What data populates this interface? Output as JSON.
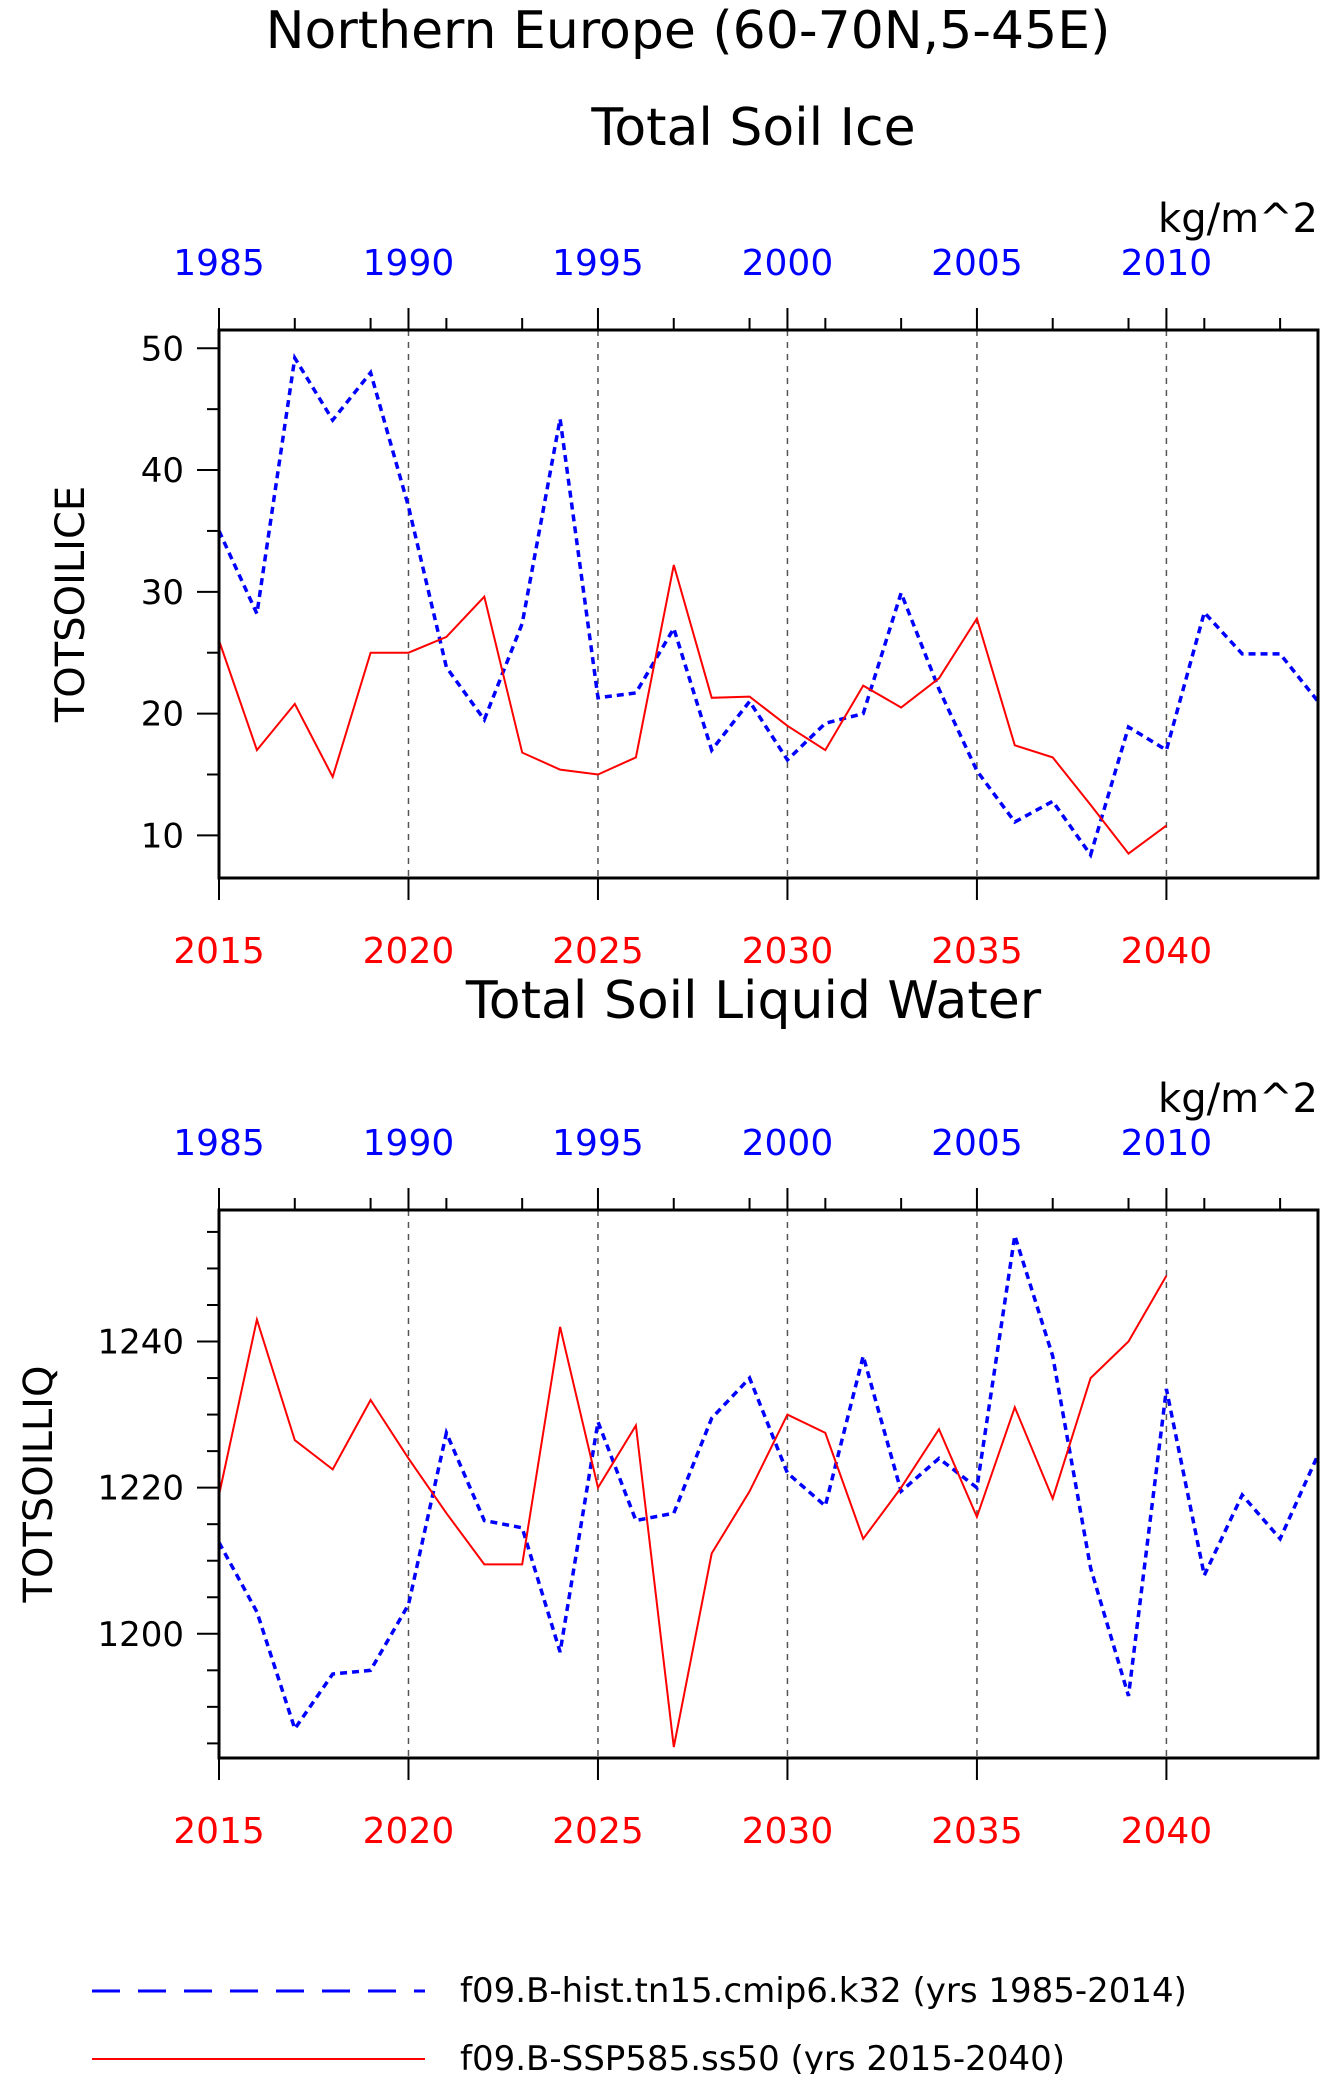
{
  "page": {
    "main_title": "Northern Europe (60-70N,5-45E)",
    "legend": [
      {
        "label": "f09.B-hist.tn15.cmip6.k32 (yrs 1985-2014)",
        "color": "#0000ff",
        "style": "dashed"
      },
      {
        "label": "f09.B-SSP585.ss50 (yrs 2015-2040)",
        "color": "#ff0000",
        "style": "solid"
      }
    ]
  },
  "chart_data": [
    {
      "type": "line",
      "title": "Total Soil Ice",
      "units": "kg/m^2",
      "ylabel": "TOTSOILICE",
      "ylim": [
        6.5,
        51.5
      ],
      "yticks": [
        10,
        20,
        30,
        40,
        50
      ],
      "y_minor_step": 5,
      "bottom_axis": {
        "ticks": [
          2015,
          2020,
          2025,
          2030,
          2035,
          2040
        ],
        "color": "#ff0000",
        "range": [
          2015,
          2044
        ]
      },
      "top_axis": {
        "ticks": [
          1985,
          1990,
          1995,
          2000,
          2005,
          2010
        ],
        "color": "#0000ff",
        "range": [
          1985,
          2014
        ]
      },
      "series": [
        {
          "name": "f09.B-hist.tn15.cmip6.k32 (yrs 1985-2014)",
          "color": "#0000ff",
          "style": "dashed",
          "x": [
            1985,
            1986,
            1987,
            1988,
            1989,
            1990,
            1991,
            1992,
            1993,
            1994,
            1995,
            1996,
            1997,
            1998,
            1999,
            2000,
            2001,
            2002,
            2003,
            2004,
            2005,
            2006,
            2007,
            2008,
            2009,
            2010,
            2011,
            2012,
            2013,
            2014
          ],
          "values": [
            35.0,
            28.2,
            49.2,
            44.1,
            48.0,
            37.0,
            23.8,
            19.5,
            27.4,
            44.2,
            21.3,
            21.7,
            27.0,
            17.0,
            21.0,
            16.2,
            19.2,
            20.0,
            29.9,
            22.0,
            15.3,
            11.1,
            12.8,
            8.4,
            18.9,
            17.0,
            28.3,
            24.9,
            24.9,
            21.0
          ]
        },
        {
          "name": "f09.B-SSP585.ss50 (yrs 2015-2040)",
          "color": "#ff0000",
          "style": "solid",
          "x": [
            2015,
            2016,
            2017,
            2018,
            2019,
            2020,
            2021,
            2022,
            2023,
            2024,
            2025,
            2026,
            2027,
            2028,
            2029,
            2030,
            2031,
            2032,
            2033,
            2034,
            2035,
            2036,
            2037,
            2038,
            2039,
            2040
          ],
          "values": [
            26.0,
            17.0,
            20.8,
            14.8,
            25.0,
            25.0,
            26.3,
            29.6,
            16.8,
            15.4,
            15.0,
            16.4,
            32.2,
            21.3,
            21.4,
            19.0,
            17.0,
            22.3,
            20.5,
            22.9,
            27.8,
            17.4,
            16.4,
            12.5,
            8.5,
            10.8
          ]
        }
      ]
    },
    {
      "type": "line",
      "title": "Total Soil Liquid Water",
      "units": "kg/m^2",
      "ylabel": "TOTSOILLIQ",
      "ylim": [
        1183,
        1258
      ],
      "yticks": [
        1200,
        1220,
        1240
      ],
      "y_minor_step": 5,
      "bottom_axis": {
        "ticks": [
          2015,
          2020,
          2025,
          2030,
          2035,
          2040
        ],
        "color": "#ff0000",
        "range": [
          2015,
          2044
        ]
      },
      "top_axis": {
        "ticks": [
          1985,
          1990,
          1995,
          2000,
          2005,
          2010
        ],
        "color": "#0000ff",
        "range": [
          1985,
          2014
        ]
      },
      "series": [
        {
          "name": "f09.B-hist.tn15.cmip6.k32 (yrs 1985-2014)",
          "color": "#0000ff",
          "style": "dashed",
          "x": [
            1985,
            1986,
            1987,
            1988,
            1989,
            1990,
            1991,
            1992,
            1993,
            1994,
            1995,
            1996,
            1997,
            1998,
            1999,
            2000,
            2001,
            2002,
            2003,
            2004,
            2005,
            2006,
            2007,
            2008,
            2009,
            2010,
            2011,
            2012,
            2013,
            2014
          ],
          "values": [
            1212.5,
            1203.0,
            1187.0,
            1194.5,
            1195.0,
            1204.0,
            1227.5,
            1215.5,
            1214.5,
            1197.5,
            1229.0,
            1215.5,
            1216.5,
            1229.5,
            1235.0,
            1222.0,
            1217.5,
            1238.0,
            1219.5,
            1224.0,
            1220.0,
            1254.5,
            1238.0,
            1209.0,
            1191.5,
            1233.5,
            1208.0,
            1219.0,
            1213.0,
            1224.5
          ]
        },
        {
          "name": "f09.B-SSP585.ss50 (yrs 2015-2040)",
          "color": "#ff0000",
          "style": "solid",
          "x": [
            2015,
            2016,
            2017,
            2018,
            2019,
            2020,
            2021,
            2022,
            2023,
            2024,
            2025,
            2026,
            2027,
            2028,
            2029,
            2030,
            2031,
            2032,
            2033,
            2034,
            2035,
            2036,
            2037,
            2038,
            2039,
            2040
          ],
          "values": [
            1219.0,
            1243.0,
            1226.5,
            1222.5,
            1232.0,
            1224.0,
            1216.5,
            1209.5,
            1209.5,
            1242.0,
            1220.0,
            1228.5,
            1184.5,
            1211.0,
            1219.5,
            1230.0,
            1227.5,
            1213.0,
            1220.0,
            1228.0,
            1216.0,
            1231.0,
            1218.5,
            1235.0,
            1240.0,
            1249.0
          ]
        }
      ]
    }
  ]
}
